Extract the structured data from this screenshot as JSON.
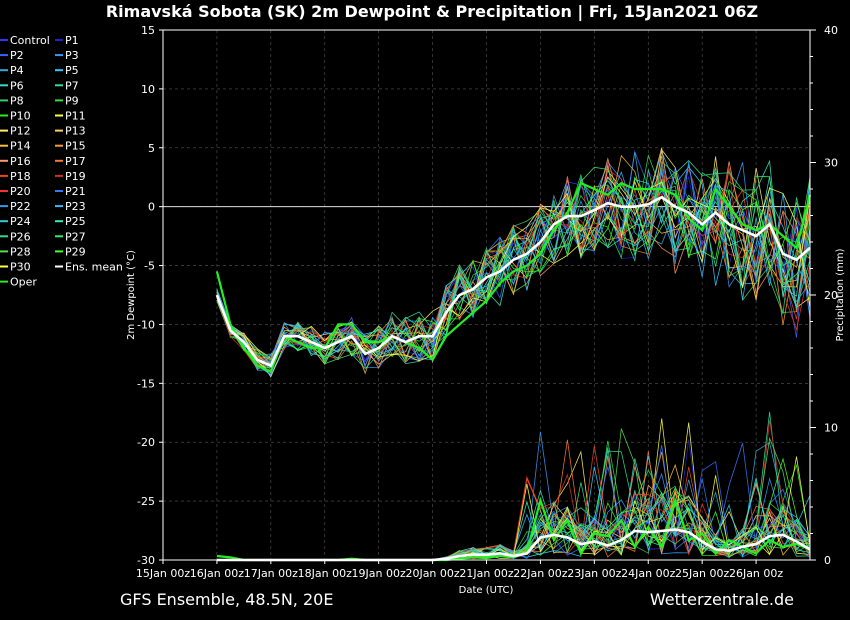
{
  "chart_data": {
    "type": "line",
    "title": "Rimavská Sobota  (SK)  2m Dewpoint & Precipitation | Fri, 15Jan2021 06Z",
    "xlabel": "Date (UTC)",
    "ylabel": "2m Dewpoint (°C)",
    "y2label": "Precipitation (mm)",
    "ylim": [
      -30,
      15
    ],
    "y2lim": [
      0,
      40
    ],
    "yticks": [
      -30,
      -25,
      -20,
      -15,
      -10,
      -5,
      0,
      5,
      10,
      15
    ],
    "y2ticks": [
      0,
      10,
      20,
      30,
      40
    ],
    "xlim": [
      0,
      12
    ],
    "x_categories": [
      "15Jan 00z",
      "16Jan 00z",
      "17Jan 00z",
      "18Jan 00z",
      "19Jan 00z",
      "20Jan 00z",
      "21Jan 00z",
      "22Jan 00z",
      "23Jan 00z",
      "24Jan 00z",
      "25Jan 00z",
      "26Jan 00z"
    ],
    "footer_left": "GFS Ensemble, 48.5N, 20E",
    "footer_right": "Wetterzentrale.de",
    "legend": [
      {
        "name": "Control",
        "color": "#3333ff"
      },
      {
        "name": "P1",
        "color": "#2222cc"
      },
      {
        "name": "P2",
        "color": "#3366ff"
      },
      {
        "name": "P3",
        "color": "#3399ff"
      },
      {
        "name": "P4",
        "color": "#33aadd"
      },
      {
        "name": "P5",
        "color": "#33ccff"
      },
      {
        "name": "P6",
        "color": "#33ddcc"
      },
      {
        "name": "P7",
        "color": "#33dd99"
      },
      {
        "name": "P8",
        "color": "#33cc66"
      },
      {
        "name": "P9",
        "color": "#33dd44"
      },
      {
        "name": "P10",
        "color": "#22ee22"
      },
      {
        "name": "P11",
        "color": "#ffff33"
      },
      {
        "name": "P12",
        "color": "#ffee66"
      },
      {
        "name": "P13",
        "color": "#ffcc66"
      },
      {
        "name": "P14",
        "color": "#ffbb33"
      },
      {
        "name": "P15",
        "color": "#ff9933"
      },
      {
        "name": "P16",
        "color": "#ff9966"
      },
      {
        "name": "P17",
        "color": "#ff7733"
      },
      {
        "name": "P18",
        "color": "#ee4422"
      },
      {
        "name": "P19",
        "color": "#cc3322"
      },
      {
        "name": "P20",
        "color": "#ee3333"
      },
      {
        "name": "P21",
        "color": "#3377ff"
      },
      {
        "name": "P22",
        "color": "#3399ee"
      },
      {
        "name": "P23",
        "color": "#33bbff"
      },
      {
        "name": "P24",
        "color": "#33ccdd"
      },
      {
        "name": "P25",
        "color": "#33eebb"
      },
      {
        "name": "P26",
        "color": "#33dd88"
      },
      {
        "name": "P27",
        "color": "#33ee66"
      },
      {
        "name": "P28",
        "color": "#55dd55"
      },
      {
        "name": "P29",
        "color": "#44ff33"
      },
      {
        "name": "P30",
        "color": "#ffff44"
      },
      {
        "name": "Ens. mean",
        "color": "#ffffff"
      },
      {
        "name": "Oper",
        "color": "#22ee22"
      }
    ],
    "series_x": [
      1,
      1.25,
      1.5,
      1.75,
      2,
      2.25,
      2.5,
      2.75,
      3,
      3.25,
      3.5,
      3.75,
      4,
      4.25,
      4.5,
      4.75,
      5,
      5.25,
      5.5,
      5.75,
      6,
      6.25,
      6.5,
      6.75,
      7,
      7.25,
      7.5,
      7.75,
      8,
      8.25,
      8.5,
      8.75,
      9,
      9.25,
      9.5,
      9.75,
      10,
      10.25,
      10.5,
      10.75,
      11,
      11.25,
      11.5,
      11.75,
      12
    ],
    "ens_mean_dewpoint": [
      -7.5,
      -10.5,
      -11.5,
      -13,
      -13.5,
      -11,
      -11,
      -11.5,
      -12,
      -11.5,
      -11,
      -12.5,
      -12,
      -11,
      -11.5,
      -11,
      -11,
      -9,
      -7.5,
      -7,
      -6,
      -5.5,
      -4.5,
      -4,
      -3,
      -1.5,
      -0.8,
      -0.8,
      -0.3,
      0.3,
      0,
      0,
      0.2,
      0.8,
      0,
      -0.5,
      -1.5,
      -0.5,
      -1.5,
      -2,
      -2.5,
      -1.5,
      -4,
      -4.5,
      -3.5
    ],
    "ens_mean_precip": [
      0,
      0,
      0,
      0,
      0,
      0,
      0,
      0,
      0,
      0,
      0,
      0,
      0,
      0,
      0,
      0,
      0,
      0.1,
      0.3,
      0.4,
      0.4,
      0.5,
      0.3,
      0.5,
      1.7,
      1.9,
      1.7,
      1.2,
      1.4,
      1.1,
      1.5,
      2.2,
      2.1,
      2.2,
      2.3,
      2.1,
      1.4,
      0.8,
      0.7,
      1.0,
      1.2,
      1.8,
      1.9,
      1.4,
      0.8
    ],
    "oper_dewpoint": [
      -5.5,
      -10,
      -12,
      -13.5,
      -14,
      -11,
      -11.5,
      -12,
      -12,
      -10,
      -10,
      -11.5,
      -11.5,
      -11,
      -11.5,
      -12,
      -13,
      -11,
      -10,
      -9,
      -8,
      -6.5,
      -5.5,
      -5,
      -4,
      -2,
      -0.5,
      2,
      1.5,
      1,
      2,
      1.5,
      1.5,
      1.5,
      1,
      -1,
      -2,
      1.5,
      0,
      -1.5,
      -2,
      -1.5,
      -2.5,
      -3.5,
      1
    ],
    "oper_precip": [
      0.3,
      0.2,
      0,
      0,
      0,
      0,
      0,
      0,
      0,
      0,
      0.1,
      0,
      0,
      0,
      0,
      0,
      0,
      0,
      0.1,
      0.2,
      0.2,
      0.3,
      0.2,
      0.6,
      4.5,
      1.5,
      3.0,
      0.5,
      2.0,
      1.8,
      3.0,
      1.0,
      2.5,
      1.0,
      4.5,
      1.5,
      2.0,
      0.5,
      1.5,
      1.0,
      0.5,
      1.5,
      1.0,
      1.2,
      0.8
    ]
  }
}
